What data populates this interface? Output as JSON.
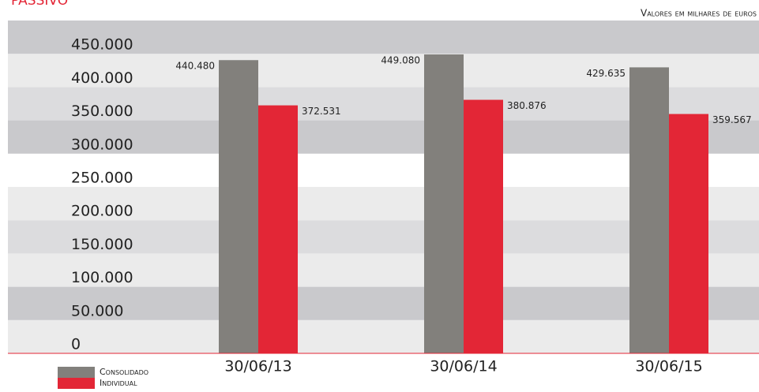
{
  "chart_data": {
    "type": "bar",
    "title": "Passivo",
    "subtitle": "Valores em milhares de euros",
    "categories": [
      "30/06/13",
      "30/06/14",
      "30/06/15"
    ],
    "series": [
      {
        "name": "Consolidado",
        "color": "#82807c",
        "values": [
          440480,
          449080,
          429635
        ],
        "value_labels": [
          "440.480",
          "449.080",
          "429.635"
        ]
      },
      {
        "name": "Individual",
        "color": "#e32636",
        "values": [
          372531,
          380876,
          359567
        ],
        "value_labels": [
          "372.531",
          "380.876",
          "359.567"
        ]
      }
    ],
    "ylim": [
      0,
      500000
    ],
    "yticks": [
      0,
      {
        "value": 50000,
        "label": "50.000"
      },
      {
        "value": 100000,
        "label": "100.000"
      },
      {
        "value": 150000,
        "label": "150.000"
      },
      {
        "value": 200000,
        "label": "200.000"
      },
      {
        "value": 250000,
        "label": "250.000"
      },
      {
        "value": 300000,
        "label": "300.000"
      },
      {
        "value": 350000,
        "label": "350.000"
      },
      {
        "value": 400000,
        "label": "400.000"
      },
      {
        "value": 450000,
        "label": "450.000"
      }
    ]
  }
}
